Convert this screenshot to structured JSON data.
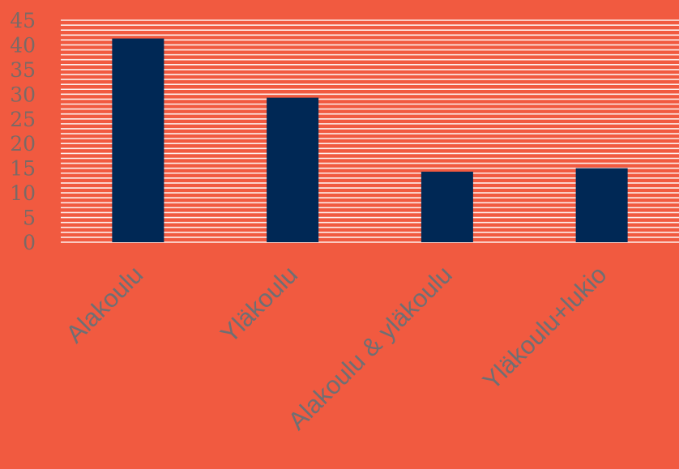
{
  "chart_data": {
    "type": "bar",
    "categories": [
      "Alakoulu",
      "Yläkoulu",
      "Alakoulu & yläkoulu",
      "Yläkoulu+lukio"
    ],
    "values": [
      41.3,
      29.3,
      14.3,
      15.0
    ],
    "ylim": [
      0,
      45
    ],
    "yticks": [
      0,
      5,
      10,
      15,
      20,
      25,
      30,
      35,
      40,
      45
    ],
    "grid": true,
    "colors": {
      "background": "#f15a40",
      "bar": "#002855",
      "gridline": "#ffffff",
      "tick_label": "#7a6a66"
    }
  }
}
